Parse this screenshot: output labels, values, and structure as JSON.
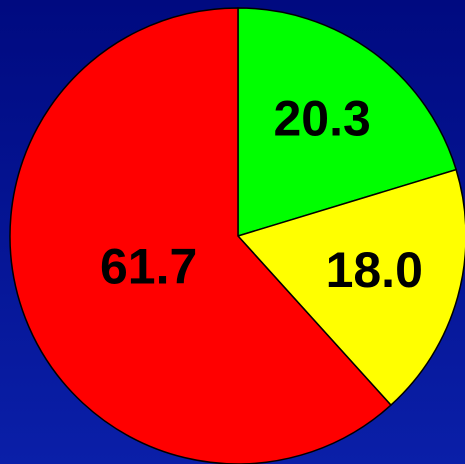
{
  "chart_data": {
    "type": "pie",
    "values": [
      20.3,
      18.0,
      61.7
    ],
    "value_labels": [
      "20.3",
      "18.0",
      "61.7"
    ],
    "colors": [
      "#00ff00",
      "#ffff00",
      "#ff0000"
    ],
    "start_angle": 0,
    "direction": "clockwise"
  }
}
